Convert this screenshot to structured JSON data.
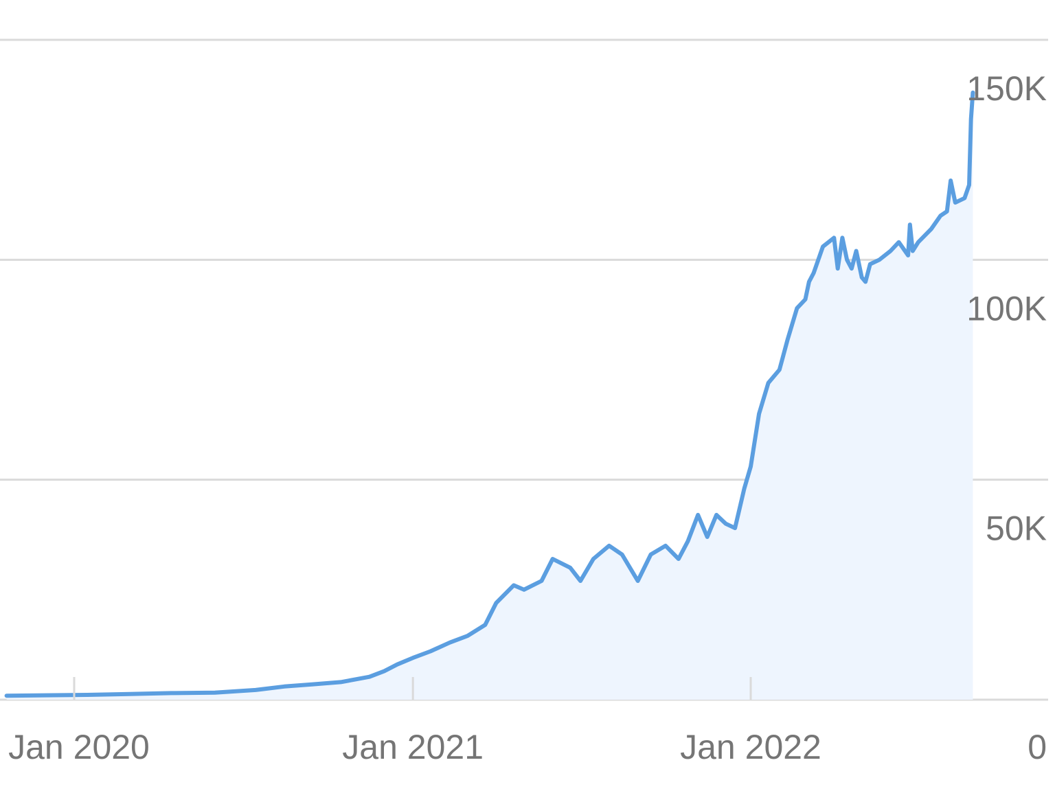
{
  "chart_data": {
    "type": "area",
    "title": "",
    "xlabel": "",
    "ylabel": "",
    "y_axis_position": "right",
    "grid": true,
    "legend": "none",
    "x_ticks": [
      "Jan 2020",
      "Jan 2021",
      "Jan 2022"
    ],
    "y_ticks": [
      "0",
      "50K",
      "100K",
      "150K"
    ],
    "y_tick_values": [
      0,
      50000,
      100000,
      150000
    ],
    "ylim": [
      0,
      150000
    ],
    "xlim": [
      "2019-10-20",
      "2022-12-31"
    ],
    "colors": {
      "line": "#5b9ee0",
      "fill": "#eef5fe",
      "grid": "#dadada",
      "text": "#757575"
    },
    "series": [
      {
        "x": [
          "2019-10-20",
          "2019-12-01",
          "2020-01-15",
          "2020-03-01",
          "2020-04-15",
          "2020-06-01",
          "2020-07-15",
          "2020-08-15",
          "2020-09-15",
          "2020-10-15",
          "2020-11-15",
          "2020-12-01",
          "2020-12-15",
          "2021-01-01",
          "2021-01-20",
          "2021-02-10",
          "2021-03-01",
          "2021-03-20",
          "2021-04-01",
          "2021-04-20",
          "2021-05-01",
          "2021-05-20",
          "2021-06-01",
          "2021-06-20",
          "2021-07-01",
          "2021-07-15",
          "2021-08-01",
          "2021-08-15",
          "2021-09-01",
          "2021-09-15",
          "2021-10-01",
          "2021-10-15",
          "2021-10-25",
          "2021-11-05",
          "2021-11-15",
          "2021-11-25",
          "2021-12-05",
          "2021-12-15",
          "2021-12-25",
          "2022-01-01",
          "2022-01-10",
          "2022-01-20",
          "2022-02-01",
          "2022-02-10",
          "2022-02-20",
          "2022-03-01",
          "2022-03-05",
          "2022-03-10",
          "2022-03-20",
          "2022-04-01",
          "2022-04-05",
          "2022-04-10",
          "2022-04-15",
          "2022-04-20",
          "2022-04-25",
          "2022-05-01",
          "2022-05-05",
          "2022-05-10",
          "2022-05-20",
          "2022-06-01",
          "2022-06-10",
          "2022-06-20",
          "2022-06-22",
          "2022-06-25",
          "2022-07-01",
          "2022-07-15",
          "2022-07-25",
          "2022-08-01",
          "2022-08-05",
          "2022-08-10",
          "2022-08-20",
          "2022-08-25",
          "2022-08-27",
          "2022-08-29"
        ],
        "values": [
          900,
          1000,
          1100,
          1300,
          1500,
          1600,
          2200,
          3000,
          3500,
          4000,
          5200,
          6500,
          8000,
          9500,
          11000,
          13000,
          14500,
          17000,
          22000,
          26000,
          25000,
          27000,
          32000,
          30000,
          27000,
          32000,
          35000,
          33000,
          27000,
          33000,
          35000,
          32000,
          36000,
          42000,
          37000,
          42000,
          40000,
          39000,
          48000,
          53000,
          65000,
          72000,
          75000,
          82000,
          89000,
          91000,
          95000,
          97000,
          103000,
          105000,
          98000,
          105000,
          100000,
          98000,
          102000,
          96000,
          95000,
          99000,
          100000,
          102000,
          104000,
          101000,
          108000,
          102000,
          104000,
          107000,
          110000,
          111000,
          118000,
          113000,
          114000,
          117000,
          132000,
          138000
        ]
      }
    ]
  }
}
